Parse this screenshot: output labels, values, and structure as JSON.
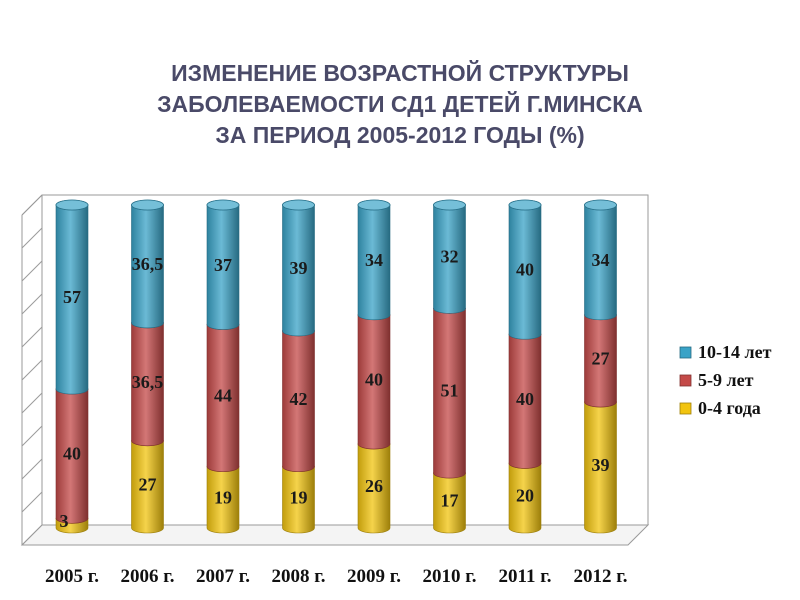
{
  "title_lines": [
    "ИЗМЕНЕНИЕ ВОЗРАСТНОЙ СТРУКТУРЫ",
    "ЗАБОЛЕВАЕМОСТИ СД1  ДЕТЕЙ Г.МИНСКА",
    "ЗА ПЕРИОД 2005-2012 ГОДЫ  (%)"
  ],
  "chart_data": {
    "type": "bar",
    "stacked": true,
    "percent": true,
    "title": "ИЗМЕНЕНИЕ ВОЗРАСТНОЙ СТРУКТУРЫ ЗАБОЛЕВАЕМОСТИ СД1  ДЕТЕЙ Г.МИНСКА ЗА ПЕРИОД 2005-2012 ГОДЫ  (%)",
    "categories": [
      "2005 г.",
      "2006 г.",
      "2007 г.",
      "2008 г.",
      "2009 г.",
      "2010 г.",
      "2011 г.",
      "2012 г."
    ],
    "series": [
      {
        "name": "0-4 года",
        "color": "#f2c40f",
        "values": [
          3,
          27,
          19,
          19,
          26,
          17,
          20,
          39
        ],
        "labels": [
          "3",
          "27",
          "19",
          "19",
          "26",
          "17",
          "20",
          "39"
        ]
      },
      {
        "name": "5-9 лет",
        "color": "#c44a48",
        "values": [
          40,
          36.5,
          44,
          42,
          40,
          51,
          40,
          27
        ],
        "labels": [
          "40",
          "36,5",
          "44",
          "42",
          "40",
          "51",
          "40",
          "27"
        ]
      },
      {
        "name": "10-14 лет",
        "color": "#3aa3c7",
        "values": [
          57,
          36.5,
          37,
          39,
          34,
          32,
          40,
          34
        ],
        "labels": [
          "57",
          "36,5",
          "37",
          "39",
          "34",
          "32",
          "40",
          "34"
        ]
      }
    ],
    "legend_order": [
      "10-14 лет",
      "5-9 лет",
      "0-4 года"
    ],
    "legend_position": "right",
    "ylim": [
      0,
      100
    ],
    "grid": false
  }
}
